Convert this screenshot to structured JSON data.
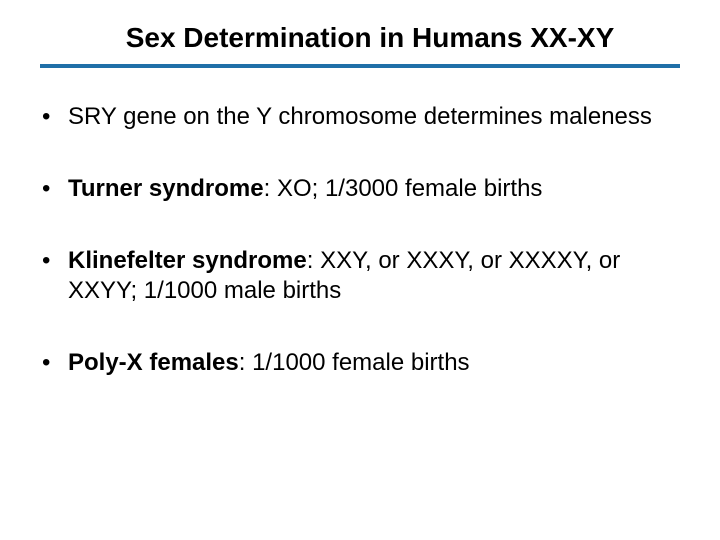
{
  "title": "Sex Determination in Humans  XX-XY",
  "divider_color": "#1f6fa8",
  "bullets": [
    {
      "bold_prefix": "",
      "rest": "SRY gene on the Y chromosome determines maleness"
    },
    {
      "bold_prefix": "Turner syndrome",
      "rest": ": XO; 1/3000 female births"
    },
    {
      "bold_prefix": "Klinefelter syndrome",
      "rest": ": XXY, or XXXY, or XXXXY, or XXYY; 1/1000 male births"
    },
    {
      "bold_prefix": "Poly-X females",
      "rest": ": 1/1000 female births"
    }
  ],
  "text_color": "#000000",
  "background_color": "#ffffff",
  "title_fontsize": 28,
  "body_fontsize": 24
}
